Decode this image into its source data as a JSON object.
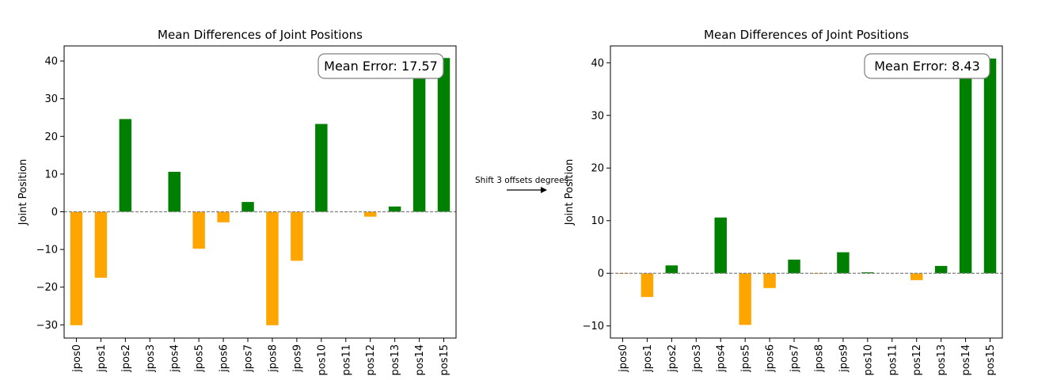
{
  "chart_data": [
    {
      "type": "bar",
      "title": "Mean Differences of Joint Positions",
      "xlabel": "",
      "ylabel": "Joint Position",
      "categories": [
        "jpos0",
        "jpos1",
        "jpos2",
        "jpos3",
        "jpos4",
        "jpos5",
        "jpos6",
        "jpos7",
        "jpos8",
        "jpos9",
        "pos10",
        "pos11",
        "pos12",
        "pos13",
        "pos14",
        "pos15"
      ],
      "values": [
        -30.1,
        -17.5,
        24.6,
        0,
        10.6,
        -9.8,
        -2.8,
        2.6,
        -30.1,
        -13.0,
        23.3,
        0,
        -1.3,
        1.4,
        40.8,
        40.8
      ],
      "ylim": [
        -33.5,
        44
      ],
      "yticks": [
        -30,
        -20,
        -10,
        0,
        10,
        20,
        30,
        40
      ],
      "annotation": "Mean Error: 17.57",
      "positive_color": "#008000",
      "negative_color": "#ffa500",
      "grid": false
    },
    {
      "type": "bar",
      "title": "Mean Differences of Joint Positions",
      "xlabel": "",
      "ylabel": "Joint Position",
      "categories": [
        "jpos0",
        "jpos1",
        "jpos2",
        "jpos3",
        "jpos4",
        "jpos5",
        "jpos6",
        "jpos7",
        "jpos8",
        "jpos9",
        "pos10",
        "pos11",
        "pos12",
        "pos13",
        "pos14",
        "pos15"
      ],
      "values": [
        -0.1,
        -4.5,
        1.5,
        0,
        10.6,
        -9.8,
        -2.8,
        2.6,
        -0.1,
        4.0,
        0.2,
        0,
        -1.3,
        1.4,
        40.8,
        40.8
      ],
      "ylim": [
        -12.3,
        43.2
      ],
      "yticks": [
        -10,
        0,
        10,
        20,
        30,
        40
      ],
      "annotation": "Mean Error: 8.43",
      "positive_color": "#008000",
      "negative_color": "#ffa500",
      "grid": false
    }
  ],
  "arrow_label": "Shift 3 offsets degrees",
  "zero_line_color": "#808080"
}
